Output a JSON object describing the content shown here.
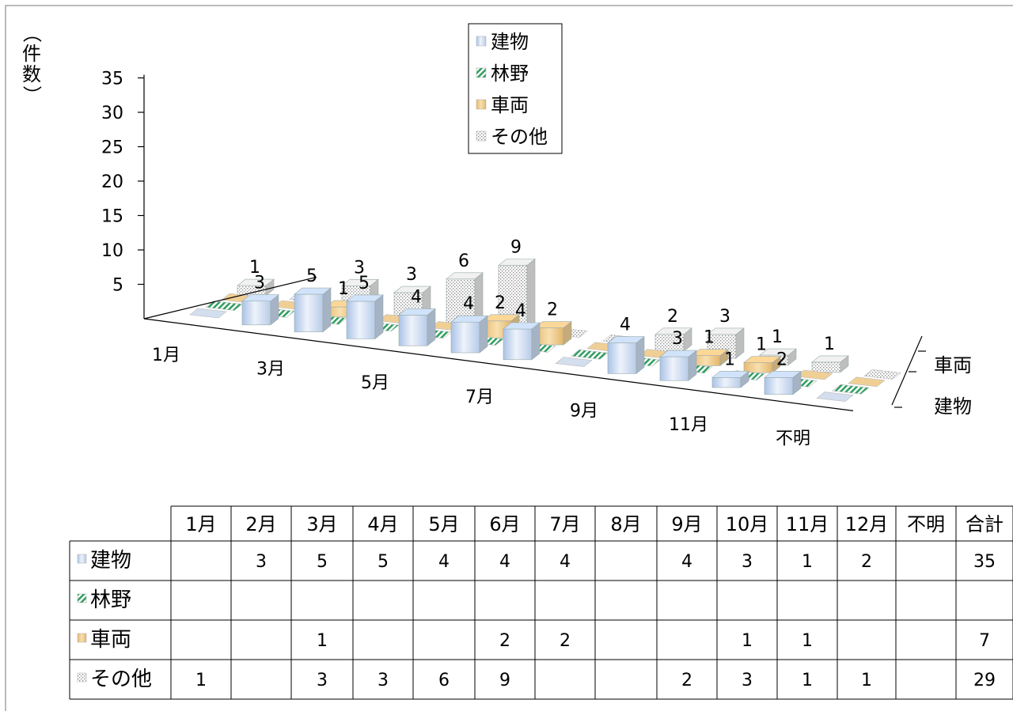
{
  "chart_data": {
    "type": "bar",
    "variant": "3d-clustered-depth",
    "ylabel": "（件数）",
    "yticks": [
      5,
      10,
      15,
      20,
      25,
      30,
      35
    ],
    "ylim": [
      0,
      35
    ],
    "x_tick_labels": [
      "1月",
      "3月",
      "5月",
      "7月",
      "9月",
      "11月",
      "不明"
    ],
    "depth_tick_labels": [
      "車両",
      "建物"
    ],
    "legend_position": "top-center",
    "categories": [
      "1月",
      "2月",
      "3月",
      "4月",
      "5月",
      "6月",
      "7月",
      "8月",
      "9月",
      "10月",
      "11月",
      "12月",
      "不明",
      "合計"
    ],
    "series": [
      {
        "name": "建物",
        "values": [
          null,
          3,
          5,
          5,
          4,
          4,
          4,
          null,
          4,
          3,
          1,
          2,
          null,
          35
        ],
        "color": "#c9daf0"
      },
      {
        "name": "林野",
        "values": [
          null,
          null,
          null,
          null,
          null,
          null,
          null,
          null,
          null,
          null,
          null,
          null,
          null,
          null
        ],
        "color": "#2e9e5e"
      },
      {
        "name": "車両",
        "values": [
          null,
          null,
          1,
          null,
          null,
          2,
          2,
          null,
          null,
          1,
          1,
          null,
          null,
          7
        ],
        "color": "#f2cf92"
      },
      {
        "name": "その他",
        "values": [
          1,
          null,
          3,
          3,
          6,
          9,
          null,
          null,
          2,
          3,
          1,
          1,
          null,
          29
        ],
        "color": "#e8e8e8"
      }
    ]
  }
}
